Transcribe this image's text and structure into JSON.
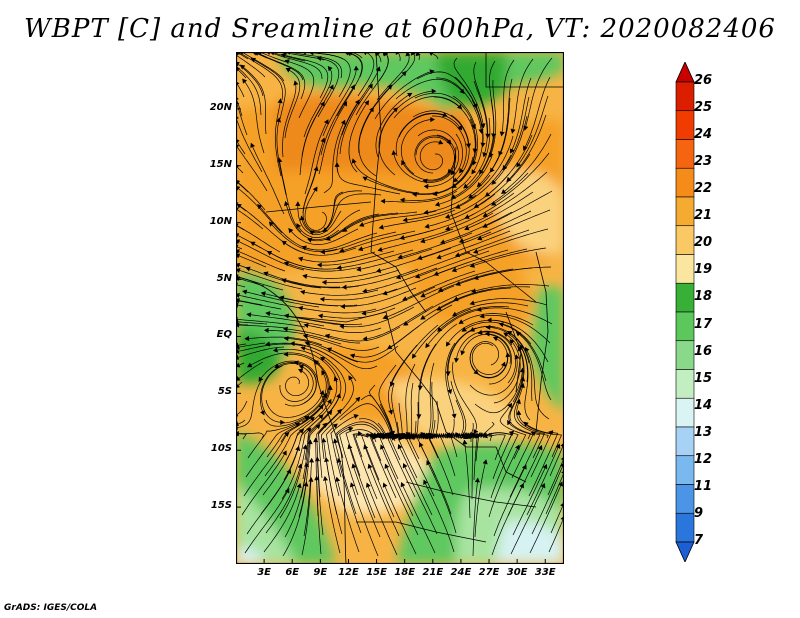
{
  "title": "WBPT [C] and Sreamline at 600hPa, VT: 2020082406",
  "footer": "GrADS: IGES/COLA",
  "map": {
    "lon_range": [
      0,
      35
    ],
    "lat_range": [
      -20,
      25
    ],
    "lat_ticks": [
      {
        "value": 20,
        "label": "20N"
      },
      {
        "value": 15,
        "label": "15N"
      },
      {
        "value": 10,
        "label": "10N"
      },
      {
        "value": 5,
        "label": "5N"
      },
      {
        "value": 0,
        "label": "EQ"
      },
      {
        "value": -5,
        "label": "5S"
      },
      {
        "value": -10,
        "label": "10S"
      },
      {
        "value": -15,
        "label": "15S"
      }
    ],
    "lon_ticks": [
      {
        "value": 3,
        "label": "3E"
      },
      {
        "value": 6,
        "label": "6E"
      },
      {
        "value": 9,
        "label": "9E"
      },
      {
        "value": 12,
        "label": "12E"
      },
      {
        "value": 15,
        "label": "15E"
      },
      {
        "value": 18,
        "label": "18E"
      },
      {
        "value": 21,
        "label": "21E"
      },
      {
        "value": 24,
        "label": "24E"
      },
      {
        "value": 27,
        "label": "27E"
      },
      {
        "value": 30,
        "label": "30E"
      },
      {
        "value": 33,
        "label": "33E"
      }
    ]
  },
  "colorbar": {
    "levels": [
      "26",
      "25",
      "24",
      "23",
      "22",
      "21",
      "20",
      "19",
      "18",
      "17",
      "16",
      "15",
      "14",
      "13",
      "12",
      "11",
      "9",
      "7"
    ],
    "colors": [
      "#c80000",
      "#dc1e00",
      "#f03c00",
      "#f56410",
      "#f58c1a",
      "#f5aa32",
      "#fac864",
      "#fbe6a0",
      "#38b038",
      "#5cc85c",
      "#8ad88a",
      "#c2eec2",
      "#daf4f4",
      "#a8d2f5",
      "#7ab8f0",
      "#4c94e6",
      "#2b76dc",
      "#1c5fd4"
    ]
  },
  "palette": {
    "hot": "#f5a028",
    "warm": "#f7b445",
    "mild": "#fad27e",
    "pale": "#fde6b0",
    "green_dark": "#33aa33",
    "green": "#5ec85e",
    "green_light": "#a8e4a0",
    "cool": "#d6f2f2",
    "orange_dark": "#ee8a1e"
  }
}
